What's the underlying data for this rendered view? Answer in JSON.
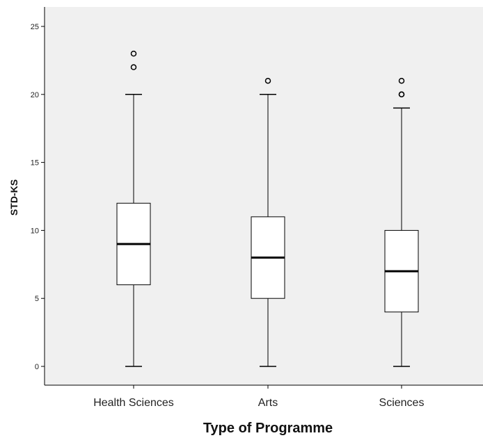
{
  "chart_data": {
    "type": "box",
    "xlabel": "Type of Programme",
    "ylabel": "STD-KS",
    "ylim": [
      0,
      25
    ],
    "yticks": [
      0,
      5,
      10,
      15,
      20,
      25
    ],
    "grid": false,
    "colors": {
      "plot_background": "#f0f0f0",
      "box_fill": "#ffffff",
      "stroke": "#000000"
    },
    "categories": [
      "Health Sciences",
      "Arts",
      "Sciences"
    ],
    "boxes": [
      {
        "category": "Health Sciences",
        "min": 0,
        "q1": 6,
        "median": 9,
        "q3": 12,
        "max": 20,
        "outliers": [
          22,
          23
        ]
      },
      {
        "category": "Arts",
        "min": 0,
        "q1": 5,
        "median": 8,
        "q3": 11,
        "max": 20,
        "outliers": [
          21
        ]
      },
      {
        "category": "Sciences",
        "min": 0,
        "q1": 4,
        "median": 7,
        "q3": 10,
        "max": 19,
        "outliers": [
          20,
          20,
          21
        ]
      }
    ]
  }
}
